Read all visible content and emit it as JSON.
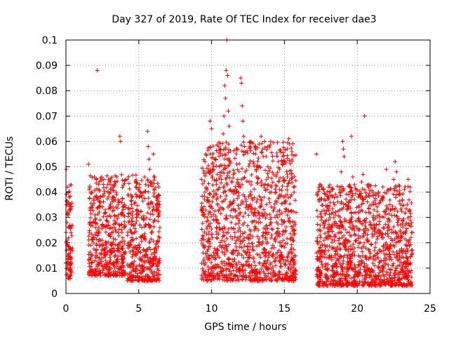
{
  "chart_data": {
    "type": "scatter",
    "title": "Day 327 of 2019, Rate Of TEC Index for receiver dae3",
    "xlabel": "GPS time / hours",
    "ylabel": "ROTI / TECUs",
    "xlim": [
      0,
      25
    ],
    "ylim": [
      0,
      0.1
    ],
    "xticks": [
      0,
      5,
      10,
      15,
      20,
      25
    ],
    "yticks": [
      0,
      0.01,
      0.02,
      0.03,
      0.04,
      0.05,
      0.06,
      0.07,
      0.08,
      0.09,
      0.1
    ],
    "xtick_labels": [
      "0",
      "5",
      "10",
      "15",
      "20",
      "25"
    ],
    "ytick_labels": [
      "0",
      "0.01",
      "0.02",
      "0.03",
      "0.04",
      "0.05",
      "0.06",
      "0.07",
      "0.08",
      "0.09",
      "0.1"
    ],
    "grid": true,
    "marker": "+",
    "series_color": "#ff0000",
    "series": [
      {
        "points": [
          [
            0.02,
            0.049
          ],
          [
            0.05,
            0.035
          ],
          [
            0.08,
            0.028
          ],
          [
            0.1,
            0.042
          ],
          [
            0.12,
            0.015
          ],
          [
            0.15,
            0.031
          ],
          [
            0.18,
            0.022
          ],
          [
            0.2,
            0.012
          ],
          [
            0.22,
            0.038
          ],
          [
            0.25,
            0.026
          ],
          [
            0.28,
            0.018
          ],
          [
            0.3,
            0.033
          ],
          [
            0.32,
            0.009
          ],
          [
            0.35,
            0.024
          ],
          [
            0.38,
            0.014
          ],
          [
            0.22,
            0.006
          ],
          [
            1.55,
            0.051
          ],
          [
            1.6,
            0.041
          ],
          [
            1.65,
            0.028
          ],
          [
            1.7,
            0.019
          ],
          [
            1.75,
            0.012
          ],
          [
            1.8,
            0.034
          ],
          [
            1.85,
            0.022
          ],
          [
            1.9,
            0.008
          ],
          [
            1.95,
            0.046
          ],
          [
            2.0,
            0.031
          ],
          [
            2.05,
            0.017
          ],
          [
            2.1,
            0.038
          ],
          [
            2.15,
            0.088
          ],
          [
            2.2,
            0.025
          ],
          [
            2.25,
            0.043
          ],
          [
            2.3,
            0.014
          ],
          [
            2.35,
            0.029
          ],
          [
            2.4,
            0.036
          ],
          [
            2.45,
            0.011
          ],
          [
            2.5,
            0.021
          ],
          [
            2.6,
            0.045
          ],
          [
            2.7,
            0.033
          ],
          [
            2.8,
            0.016
          ],
          [
            2.9,
            0.027
          ],
          [
            3.0,
            0.044
          ],
          [
            3.1,
            0.019
          ],
          [
            3.2,
            0.038
          ],
          [
            3.3,
            0.012
          ],
          [
            3.4,
            0.025
          ],
          [
            3.5,
            0.046
          ],
          [
            3.6,
            0.031
          ],
          [
            3.7,
            0.062
          ],
          [
            3.75,
            0.06
          ],
          [
            3.8,
            0.018
          ],
          [
            3.9,
            0.022
          ],
          [
            4.0,
            0.014
          ],
          [
            4.1,
            0.008
          ],
          [
            4.2,
            0.045
          ],
          [
            4.3,
            0.028
          ],
          [
            4.4,
            0.019
          ],
          [
            4.5,
            0.035
          ],
          [
            4.6,
            0.012
          ],
          [
            4.7,
            0.024
          ],
          [
            4.8,
            0.042
          ],
          [
            4.9,
            0.016
          ],
          [
            5.0,
            0.031
          ],
          [
            5.1,
            0.009
          ],
          [
            5.2,
            0.038
          ],
          [
            5.3,
            0.022
          ],
          [
            5.4,
            0.046
          ],
          [
            5.5,
            0.027
          ],
          [
            5.6,
            0.064
          ],
          [
            5.65,
            0.058
          ],
          [
            5.7,
            0.053
          ],
          [
            5.75,
            0.049
          ],
          [
            5.8,
            0.044
          ],
          [
            5.85,
            0.036
          ],
          [
            5.9,
            0.024
          ],
          [
            5.95,
            0.013
          ],
          [
            6.0,
            0.055
          ],
          [
            6.05,
            0.041
          ],
          [
            6.1,
            0.029
          ],
          [
            6.15,
            0.018
          ],
          [
            6.2,
            0.033
          ],
          [
            6.25,
            0.007
          ],
          [
            6.3,
            0.021
          ],
          [
            6.35,
            0.039
          ],
          [
            6.4,
            0.012
          ],
          [
            6.45,
            0.026
          ],
          [
            9.3,
            0.045
          ],
          [
            9.4,
            0.032
          ],
          [
            9.5,
            0.018
          ],
          [
            9.6,
            0.055
          ],
          [
            9.7,
            0.041
          ],
          [
            9.8,
            0.027
          ],
          [
            9.9,
            0.068
          ],
          [
            10.0,
            0.065
          ],
          [
            10.05,
            0.022
          ],
          [
            10.1,
            0.038
          ],
          [
            10.2,
            0.015
          ],
          [
            10.3,
            0.029
          ],
          [
            10.4,
            0.047
          ],
          [
            10.5,
            0.058
          ],
          [
            10.6,
            0.034
          ],
          [
            10.7,
            0.021
          ],
          [
            10.8,
            0.063
          ],
          [
            10.85,
            0.07
          ],
          [
            10.9,
            0.082
          ],
          [
            10.95,
            0.077
          ],
          [
            11.0,
            0.088
          ],
          [
            11.05,
            0.1
          ],
          [
            11.1,
            0.086
          ],
          [
            11.15,
            0.072
          ],
          [
            11.2,
            0.066
          ],
          [
            11.25,
            0.052
          ],
          [
            11.3,
            0.041
          ],
          [
            11.35,
            0.028
          ],
          [
            11.4,
            0.016
          ],
          [
            11.5,
            0.036
          ],
          [
            11.6,
            0.024
          ],
          [
            11.7,
            0.057
          ],
          [
            11.8,
            0.045
          ],
          [
            11.9,
            0.031
          ],
          [
            12.0,
            0.085
          ],
          [
            12.05,
            0.083
          ],
          [
            12.1,
            0.074
          ],
          [
            12.15,
            0.068
          ],
          [
            12.2,
            0.062
          ],
          [
            12.3,
            0.048
          ],
          [
            12.4,
            0.035
          ],
          [
            12.5,
            0.022
          ],
          [
            12.6,
            0.014
          ],
          [
            12.7,
            0.039
          ],
          [
            12.8,
            0.028
          ],
          [
            12.9,
            0.017
          ],
          [
            13.0,
            0.033
          ],
          [
            13.1,
            0.046
          ],
          [
            13.2,
            0.025
          ],
          [
            13.3,
            0.012
          ],
          [
            13.4,
            0.062
          ],
          [
            13.5,
            0.057
          ],
          [
            13.6,
            0.038
          ],
          [
            13.7,
            0.022
          ],
          [
            13.8,
            0.031
          ],
          [
            13.9,
            0.016
          ],
          [
            14.0,
            0.027
          ],
          [
            14.1,
            0.042
          ],
          [
            14.2,
            0.019
          ],
          [
            14.3,
            0.034
          ],
          [
            14.4,
            0.011
          ],
          [
            14.5,
            0.024
          ],
          [
            14.6,
            0.038
          ],
          [
            14.7,
            0.015
          ],
          [
            14.8,
            0.029
          ],
          [
            14.9,
            0.021
          ],
          [
            15.0,
            0.036
          ],
          [
            15.1,
            0.013
          ],
          [
            15.2,
            0.046
          ],
          [
            15.3,
            0.061
          ],
          [
            15.35,
            0.059
          ],
          [
            15.4,
            0.028
          ],
          [
            15.5,
            0.018
          ],
          [
            15.6,
            0.007
          ],
          [
            15.7,
            0.025
          ],
          [
            15.8,
            0.032
          ],
          [
            17.2,
            0.055
          ],
          [
            17.3,
            0.025
          ],
          [
            17.4,
            0.014
          ],
          [
            17.5,
            0.008
          ],
          [
            17.6,
            0.019
          ],
          [
            17.7,
            0.028
          ],
          [
            17.8,
            0.011
          ],
          [
            17.9,
            0.022
          ],
          [
            18.0,
            0.006
          ],
          [
            18.1,
            0.015
          ],
          [
            18.2,
            0.026
          ],
          [
            18.3,
            0.009
          ],
          [
            18.4,
            0.018
          ],
          [
            18.5,
            0.031
          ],
          [
            18.6,
            0.013
          ],
          [
            18.7,
            0.021
          ],
          [
            18.8,
            0.041
          ],
          [
            18.9,
            0.048
          ],
          [
            19.0,
            0.06
          ],
          [
            19.05,
            0.057
          ],
          [
            19.1,
            0.054
          ],
          [
            19.2,
            0.035
          ],
          [
            19.3,
            0.024
          ],
          [
            19.4,
            0.012
          ],
          [
            19.5,
            0.029
          ],
          [
            19.6,
            0.062
          ],
          [
            19.7,
            0.046
          ],
          [
            19.8,
            0.018
          ],
          [
            19.9,
            0.032
          ],
          [
            20.0,
            0.008
          ],
          [
            20.1,
            0.025
          ],
          [
            20.2,
            0.038
          ],
          [
            20.3,
            0.044
          ],
          [
            20.4,
            0.047
          ],
          [
            20.5,
            0.07
          ],
          [
            20.6,
            0.032
          ],
          [
            20.7,
            0.021
          ],
          [
            20.8,
            0.043
          ],
          [
            20.9,
            0.014
          ],
          [
            21.0,
            0.027
          ],
          [
            21.1,
            0.036
          ],
          [
            21.2,
            0.011
          ],
          [
            21.3,
            0.024
          ],
          [
            21.4,
            0.016
          ],
          [
            21.5,
            0.031
          ],
          [
            21.6,
            0.009
          ],
          [
            21.7,
            0.022
          ],
          [
            21.8,
            0.038
          ],
          [
            21.9,
            0.014
          ],
          [
            22.0,
            0.049
          ],
          [
            22.1,
            0.026
          ],
          [
            22.2,
            0.018
          ],
          [
            22.3,
            0.033
          ],
          [
            22.4,
            0.011
          ],
          [
            22.5,
            0.045
          ],
          [
            22.6,
            0.052
          ],
          [
            22.7,
            0.048
          ],
          [
            22.8,
            0.029
          ],
          [
            22.9,
            0.015
          ],
          [
            23.0,
            0.022
          ],
          [
            23.1,
            0.037
          ],
          [
            23.2,
            0.012
          ],
          [
            23.3,
            0.027
          ],
          [
            23.4,
            0.019
          ],
          [
            23.5,
            0.045
          ],
          [
            23.6,
            0.033
          ],
          [
            23.7,
            0.009
          ],
          [
            23.8,
            0.024
          ]
        ]
      }
    ],
    "dense_bands": [
      {
        "x": [
          0.0,
          0.45
        ],
        "y_min": 0.006,
        "y_max": 0.043
      },
      {
        "x": [
          1.55,
          4.1
        ],
        "y_min": 0.007,
        "y_max": 0.047
      },
      {
        "x": [
          4.2,
          6.45
        ],
        "y_min": 0.005,
        "y_max": 0.047
      },
      {
        "x": [
          9.3,
          15.8
        ],
        "y_min": 0.005,
        "y_max": 0.06
      },
      {
        "x": [
          17.2,
          23.8
        ],
        "y_min": 0.003,
        "y_max": 0.043
      }
    ]
  }
}
